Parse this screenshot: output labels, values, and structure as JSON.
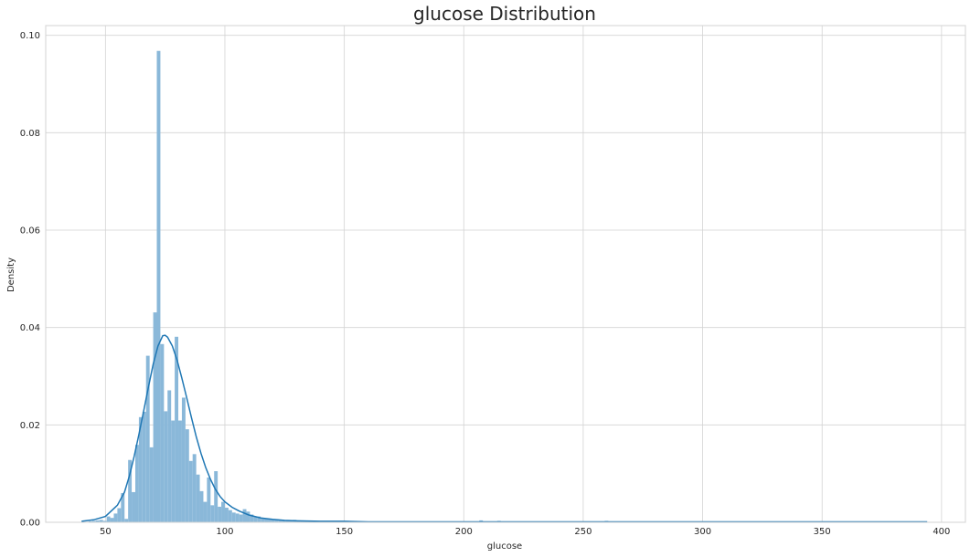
{
  "chart_data": {
    "type": "bar",
    "title": "glucose Distribution",
    "xlabel": "glucose",
    "ylabel": "Density",
    "xlim": [
      25,
      410
    ],
    "ylim": [
      0,
      0.102
    ],
    "xticks": [
      50,
      100,
      150,
      200,
      250,
      300,
      350,
      400
    ],
    "xtick_labels": [
      "50",
      "100",
      "150",
      "200",
      "250",
      "300",
      "350",
      "400"
    ],
    "yticks": [
      0.0,
      0.02,
      0.04,
      0.06,
      0.08,
      0.1
    ],
    "ytick_labels": [
      "0.00",
      "0.02",
      "0.04",
      "0.06",
      "0.08",
      "0.10"
    ],
    "grid": true,
    "bar_color": "#8ab8d9",
    "kde_color": "#1f77b4",
    "bins": {
      "x": [
        40.0,
        41.5,
        43.0,
        44.5,
        46.0,
        47.5,
        49.0,
        50.5,
        52.0,
        53.5,
        55.0,
        56.5,
        58.0,
        59.5,
        61.0,
        62.5,
        64.0,
        65.5,
        67.0,
        68.5,
        70.0,
        71.5,
        73.0,
        74.5,
        76.0,
        77.5,
        79.0,
        80.5,
        82.0,
        83.5,
        85.0,
        86.5,
        88.0,
        89.5,
        91.0,
        92.5,
        94.0,
        95.5,
        97.0,
        98.5,
        100.0,
        101.5,
        103.0,
        104.5,
        106.0,
        107.5,
        109.0,
        110.5,
        112.0,
        113.5,
        115.0,
        116.5,
        118.0,
        119.5,
        121.0,
        122.5,
        124.0,
        125.5,
        127.0,
        128.5,
        130.0,
        131.5,
        133.0,
        134.5,
        136.0,
        137.5,
        139.0,
        140.5,
        142.0,
        143.5,
        145.0,
        146.5,
        148.0,
        149.5,
        151.0,
        152.5,
        154.0,
        155.5,
        157.0,
        158.5,
        160.0,
        161.5,
        163.0,
        164.5,
        166.0,
        167.5,
        169.0,
        170.5,
        172.0,
        173.5,
        175.0,
        176.5,
        178.0,
        179.5,
        181.0,
        182.5,
        184.0,
        185.5,
        187.0,
        188.5,
        190.0,
        191.5,
        193.0,
        194.5,
        196.0,
        197.5,
        199.0,
        200.5,
        202.0,
        203.5,
        205.0,
        206.5,
        208.0,
        209.5,
        211.0,
        212.5,
        214.0,
        215.5,
        217.0,
        218.5,
        220.0,
        221.5,
        223.0,
        224.5,
        226.0,
        227.5,
        229.0,
        230.5,
        232.0,
        233.5,
        235.0,
        236.5,
        238.0,
        239.5,
        241.0,
        242.5,
        244.0,
        245.5,
        247.0,
        248.5,
        250.0,
        251.5,
        253.0,
        254.5,
        256.0,
        257.5,
        259.0,
        260.5,
        262.0,
        263.5,
        265.0,
        266.5,
        268.0,
        269.5,
        271.0,
        272.5,
        274.0,
        275.5,
        277.0,
        278.5,
        280.0,
        281.5,
        283.0,
        284.5,
        286.0,
        287.5,
        289.0,
        290.5,
        292.0,
        293.5,
        295.0,
        296.5,
        298.0,
        299.5,
        301.0,
        302.5,
        304.0,
        305.5,
        307.0,
        308.5,
        310.0,
        311.5,
        313.0,
        314.5,
        316.0,
        317.5,
        319.0,
        320.5,
        322.0,
        323.5,
        325.0,
        326.5,
        328.0,
        329.5,
        331.0,
        332.5,
        334.0,
        335.5,
        337.0,
        338.5,
        340.0,
        341.5,
        343.0,
        344.5,
        346.0,
        347.5,
        349.0,
        350.5,
        352.0,
        353.5,
        355.0,
        356.5,
        358.0,
        359.5,
        361.0,
        362.5,
        364.0,
        365.5,
        367.0,
        368.5,
        370.0,
        371.5,
        373.0,
        374.5,
        376.0,
        377.5,
        379.0,
        380.5,
        382.0,
        383.5,
        385.0,
        386.5,
        388.0,
        389.5,
        391.0,
        392.5
      ],
      "width": 1.5,
      "density": [
        0.0001,
        0.0001,
        0.0002,
        0.0003,
        0.0004,
        0.0005,
        0.0003,
        0.0012,
        0.0009,
        0.0018,
        0.0029,
        0.006,
        0.0007,
        0.0128,
        0.0062,
        0.0159,
        0.0216,
        0.0227,
        0.0342,
        0.0154,
        0.0431,
        0.0968,
        0.0366,
        0.0228,
        0.0271,
        0.0209,
        0.0381,
        0.0209,
        0.0256,
        0.0191,
        0.0126,
        0.014,
        0.0098,
        0.0064,
        0.0042,
        0.0092,
        0.0035,
        0.0105,
        0.0032,
        0.0042,
        0.003,
        0.0025,
        0.002,
        0.0018,
        0.0016,
        0.0027,
        0.0022,
        0.0016,
        0.0012,
        0.0012,
        0.0008,
        0.0008,
        0.0006,
        0.0006,
        0.0005,
        0.0005,
        0.0004,
        0.0004,
        0.0003,
        0.0005,
        0.0003,
        0.0002,
        0.0003,
        0.0003,
        0.0002,
        0.0002,
        0.0001,
        0.0002,
        0.0001,
        0.0002,
        0.0001,
        0.0001,
        0.0001,
        0.0002,
        0.0001,
        0.0001,
        0.0001,
        0.0001,
        0.0001,
        0.0001,
        0.0001,
        0.0001,
        0.0001,
        0.0001,
        0.0001,
        0.0001,
        0.0001,
        0.0001,
        0.0001,
        0.0001,
        0.0001,
        0.0001,
        0.0001,
        0.0001,
        0.0001,
        0.0001,
        0.0001,
        0.0001,
        0.0001,
        0.0001,
        0.0001,
        0.0001,
        0.0001,
        0.0001,
        0.0001,
        0.0001,
        0.0001,
        0.0001,
        0.0001,
        0.0001,
        0.0001,
        0.0004,
        0.0001,
        0.0001,
        0.0001,
        0.0001,
        0.0003,
        0.0001,
        0.0001,
        0.0001,
        0.0001,
        0.0001,
        0.0001,
        0.0001,
        0.0001,
        0.0001,
        0.0001,
        0.0001,
        0.0001,
        0.0001,
        0.0001,
        0.0001,
        0.0001,
        0.0001,
        0.0001,
        0.0001,
        0.0001,
        0.0001,
        0.0001,
        0.0001,
        0.0001,
        0.0001,
        0.0001,
        0.0001,
        0.0001,
        0.0001,
        0.0003,
        0.0001,
        0.0001,
        0.0001,
        0.0001,
        0.0001,
        0.0001,
        0.0001,
        0.0001,
        0.0001,
        0.0001,
        0.0001,
        0.0001,
        0.0001,
        0.0001,
        0.0001,
        0.0001,
        0.0001,
        0.0001,
        0.0001,
        0.0001,
        0.0001,
        0.0001,
        0.0001,
        0.0001,
        0.0001,
        0.0001,
        0.0001,
        0.0001,
        0.0001,
        0.0001,
        0.0001,
        0.0001,
        0.0001,
        0.0001,
        0.0001,
        0.0001,
        0.0001,
        0.0001,
        0.0001,
        0.0001,
        0.0001,
        0.0001,
        0.0001,
        0.0001,
        0.0001,
        0.0001,
        0.0001,
        0.0001,
        0.0001,
        0.0001,
        0.0001,
        0.0001,
        0.0001,
        0.0001,
        0.0001,
        0.0001,
        0.0001,
        0.0001,
        0.0001,
        0.0001,
        0.0001,
        0.0001,
        0.0001,
        0.0001,
        0.0001,
        0.0001,
        0.0001,
        0.0001,
        0.0001,
        0.0001,
        0.0001,
        0.0001,
        0.0001,
        0.0001,
        0.0001,
        0.0001,
        0.0001,
        0.0001,
        0.0001,
        0.0001,
        0.0001,
        0.0001,
        0.0001,
        0.0001,
        0.0001,
        0.0001,
        0.0001,
        0.0001,
        0.0001,
        0.0001,
        0.0001,
        0.0001,
        0.0001,
        0.0001,
        0.0001,
        0.0001,
        0.0001,
        0.0003
      ]
    },
    "kde": {
      "x": [
        40,
        45,
        50,
        55,
        58,
        60,
        62,
        64,
        66,
        68,
        70,
        72,
        74,
        75,
        76,
        78,
        80,
        82,
        84,
        86,
        88,
        90,
        92,
        94,
        96,
        98,
        100,
        103,
        106,
        110,
        115,
        120,
        125,
        130,
        140,
        150,
        160,
        175,
        200,
        225,
        250,
        275,
        300,
        325,
        350,
        375,
        394
      ],
      "y": [
        0.0002,
        0.0005,
        0.0012,
        0.0035,
        0.0062,
        0.0095,
        0.0135,
        0.018,
        0.0228,
        0.0278,
        0.0325,
        0.0362,
        0.0383,
        0.0384,
        0.038,
        0.0362,
        0.0333,
        0.0296,
        0.0256,
        0.0215,
        0.0176,
        0.0142,
        0.0112,
        0.0088,
        0.0068,
        0.0053,
        0.0042,
        0.0031,
        0.0023,
        0.0015,
        0.0009,
        0.0006,
        0.0004,
        0.0003,
        0.0002,
        0.0002,
        0.0001,
        0.0001,
        0.0001,
        0.0001,
        0.0001,
        0.0001,
        0.0001,
        0.0001,
        0.0001,
        0.0001,
        0.0001
      ]
    }
  }
}
